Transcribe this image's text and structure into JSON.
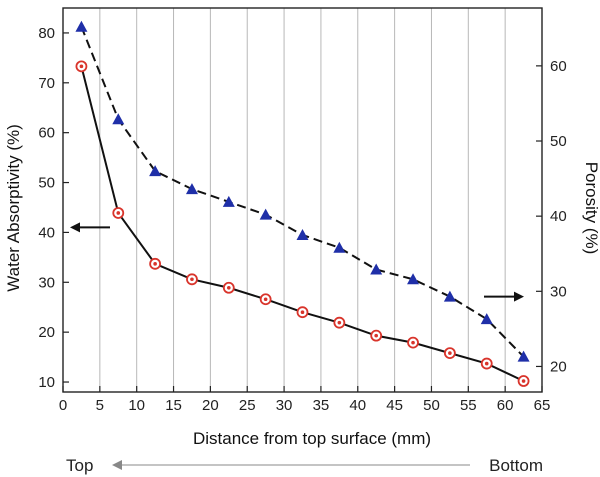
{
  "chart_data": {
    "type": "line",
    "x": [
      2.5,
      7.5,
      12.5,
      17.5,
      22.5,
      27.5,
      32.5,
      37.5,
      42.5,
      47.5,
      52.5,
      57.5,
      62.5
    ],
    "xlabel": "Distance from top surface (mm)",
    "xlim": [
      0,
      65
    ],
    "xticks": [
      "0",
      "5",
      "10",
      "15",
      "20",
      "25",
      "30",
      "35",
      "40",
      "45",
      "50",
      "55",
      "60",
      "65"
    ],
    "ylabel_left": "Water Absorptivity (%)",
    "ylim_left": [
      8,
      85
    ],
    "yticks_left": [
      "10",
      "20",
      "30",
      "40",
      "50",
      "60",
      "70",
      "80"
    ],
    "ylabel_right": "Porosity (%)",
    "ylim_right": [
      16.6,
      67.7
    ],
    "yticks_right": [
      "20",
      "30",
      "40",
      "50",
      "60"
    ],
    "grid": "vertical",
    "series": [
      {
        "axis": "left",
        "marker": "circle-dot",
        "line": "solid",
        "color": "#111111",
        "marker_color": "#d9342b",
        "values": [
          73.3,
          43.9,
          33.7,
          30.6,
          28.9,
          26.6,
          24.0,
          21.9,
          19.3,
          17.9,
          15.8,
          13.7,
          10.2
        ]
      },
      {
        "axis": "right",
        "marker": "triangle",
        "line": "dashed",
        "color": "#111111",
        "marker_color": "#1f2fa8",
        "values": [
          65.2,
          52.9,
          46.0,
          43.6,
          41.9,
          40.2,
          37.5,
          35.8,
          32.9,
          31.6,
          29.3,
          26.3,
          21.3
        ]
      }
    ],
    "annotations": {
      "left_arrow": "points to left axis",
      "right_arrow": "points to right axis"
    },
    "footer": {
      "left": "Top",
      "right": "Bottom"
    }
  }
}
